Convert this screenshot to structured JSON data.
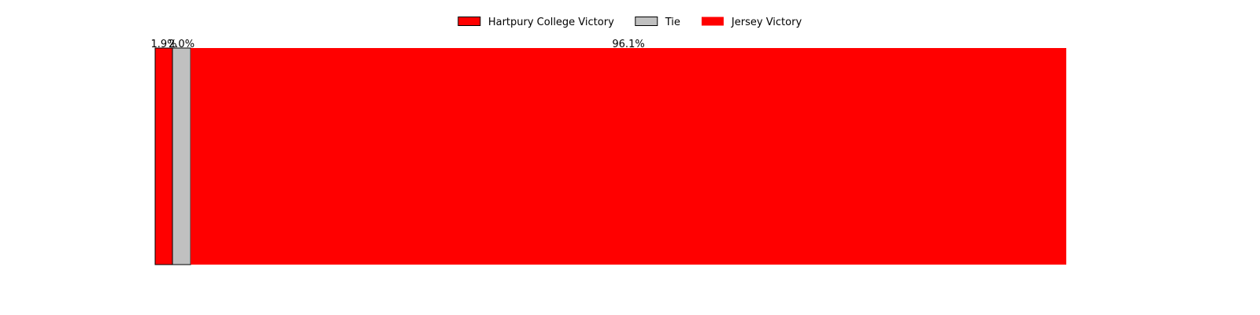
{
  "chart_data": {
    "type": "bar",
    "orientation": "horizontal-stacked",
    "series": [
      {
        "name": "Hartpury College Victory",
        "value": 1.9,
        "label": "1.9%",
        "color": "#ff0000",
        "edge": "#000000"
      },
      {
        "name": "Tie",
        "value": 2.0,
        "label": "2.0%",
        "color": "#c0c0c0",
        "edge": "#000000"
      },
      {
        "name": "Jersey Victory",
        "value": 96.1,
        "label": "96.1%",
        "color": "#ff0000",
        "edge": "none"
      }
    ],
    "xlim": [
      0,
      100
    ],
    "axes_visible": false,
    "grid": false,
    "legend_position": "top-center"
  }
}
